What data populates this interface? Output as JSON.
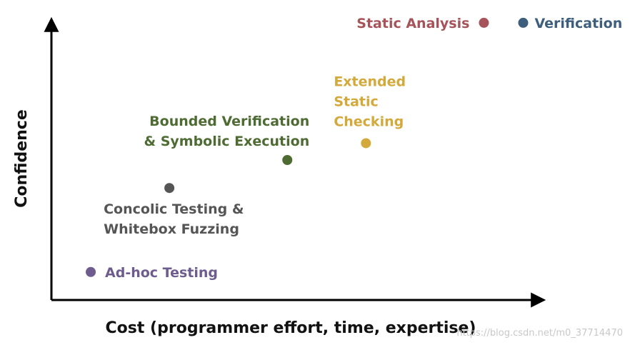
{
  "chart_data": {
    "type": "scatter",
    "title": "",
    "xlabel": "Cost (programmer effort, time, expertise)",
    "ylabel": "Confidence",
    "xlim": [
      0,
      100
    ],
    "ylim": [
      0,
      100
    ],
    "grid": false,
    "points": [
      {
        "label_lines": [
          "Ad-hoc Testing"
        ],
        "x": 8,
        "y": 10,
        "color": "#6e5c8e"
      },
      {
        "label_lines": [
          "Concolic Testing &",
          "Whitebox Fuzzing"
        ],
        "x": 24,
        "y": 40,
        "color": "#555555"
      },
      {
        "label_lines": [
          "Bounded Verification",
          "& Symbolic Execution"
        ],
        "x": 48,
        "y": 50,
        "color": "#4d6b33"
      },
      {
        "label_lines": [
          "Extended",
          "Static",
          "Checking"
        ],
        "x": 64,
        "y": 56,
        "color": "#d4a93c"
      },
      {
        "label_lines": [
          "Static Analysis"
        ],
        "x": 88,
        "y": 99,
        "color": "#a65459"
      },
      {
        "label_lines": [
          "Verification"
        ],
        "x": 96,
        "y": 99,
        "color": "#3d5e7d"
      }
    ]
  },
  "watermark": "https://blog.csdn.net/m0_37714470"
}
